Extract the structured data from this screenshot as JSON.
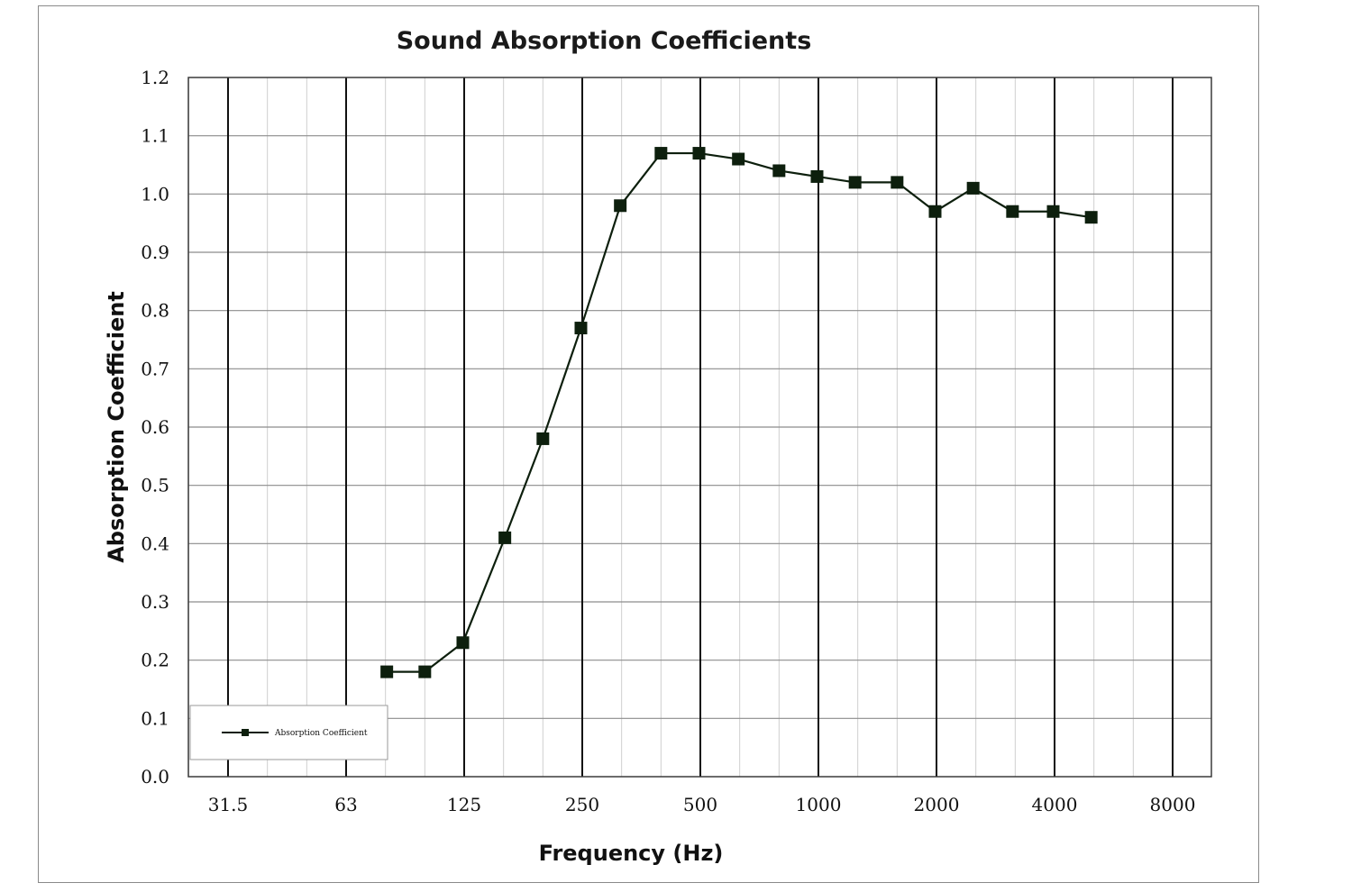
{
  "chart_data": {
    "type": "line",
    "title": "Sound Absorption Coefficients",
    "xlabel": "Frequency (Hz)",
    "ylabel": "Absorption Coefficient",
    "x_scale": "log",
    "x_tick_labels": [
      "31.5",
      "63",
      "125",
      "250",
      "500",
      "1000",
      "2000",
      "4000",
      "8000"
    ],
    "y_tick_labels": [
      "0.0",
      "0.1",
      "0.2",
      "0.3",
      "0.4",
      "0.5",
      "0.6",
      "0.7",
      "0.8",
      "0.9",
      "1.0",
      "1.1",
      "1.2"
    ],
    "ylim": [
      0,
      1.2
    ],
    "grid": true,
    "legend_position": "bottom-left",
    "series": [
      {
        "name": "Absorption Coefficient",
        "color": "#0d1f0d",
        "marker": "square",
        "x": [
          80,
          100,
          125,
          160,
          200,
          250,
          315,
          400,
          500,
          630,
          800,
          1000,
          1250,
          1600,
          2000,
          2500,
          3150,
          4000,
          5000
        ],
        "y": [
          0.18,
          0.18,
          0.23,
          0.41,
          0.58,
          0.77,
          0.98,
          1.07,
          1.07,
          1.06,
          1.04,
          1.03,
          1.02,
          1.02,
          0.97,
          1.01,
          0.97,
          0.97,
          0.96
        ]
      }
    ]
  }
}
